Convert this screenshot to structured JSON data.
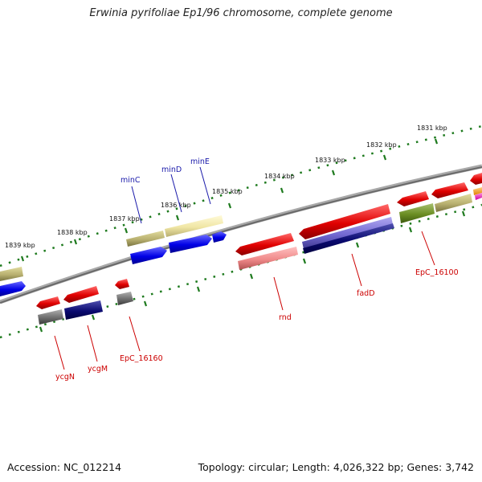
{
  "title": "Erwinia pyrifoliae Ep1/96 chromosome, complete genome",
  "footer": {
    "accession": "Accession: NC_012214",
    "topology": "Topology: circular; Length: 4,026,322 bp; Genes: 3,742"
  },
  "scale_labels": [
    "1831 kbp",
    "1832 kbp",
    "1833 kbp",
    "1834 kbp",
    "1835 kbp",
    "1836 kbp",
    "1837 kbp",
    "1838 kbp",
    "1839 kbp"
  ],
  "gene_labels": {
    "top": [
      "minC",
      "minD",
      "minE"
    ],
    "bottom": [
      "ycgN",
      "ycgM",
      "EpC_16160",
      "rnd",
      "fadD",
      "EpC_16100"
    ]
  },
  "colors": {
    "top_label": "#1a1aaa",
    "bottom_label": "#cc0000",
    "backbone": "#7a7a7a",
    "scale_ticks": "#1e7a1e"
  }
}
